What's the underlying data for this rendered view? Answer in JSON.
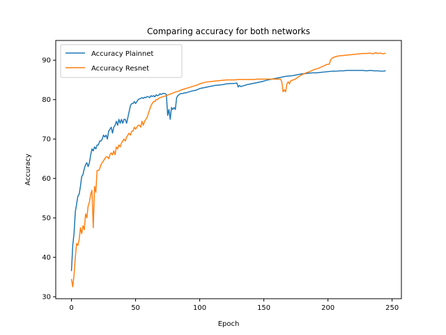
{
  "chart_data": {
    "type": "line",
    "title": "Comparing accuracy for both networks",
    "xlabel": "Epoch",
    "ylabel": "Accuracy",
    "xlim": [
      -12.25,
      257.25
    ],
    "ylim": [
      29.5,
      95.0
    ],
    "xticks": [
      0,
      50,
      100,
      150,
      200,
      250
    ],
    "yticks": [
      30,
      40,
      50,
      60,
      70,
      80,
      90
    ],
    "grid": false,
    "legend_position": "top-left",
    "series": [
      {
        "name": "Accuracy Plainnet",
        "color": "#1f77b4",
        "points": [
          [
            0,
            36.5
          ],
          [
            1,
            43
          ],
          [
            2,
            46
          ],
          [
            3,
            51.5
          ],
          [
            4,
            53.5
          ],
          [
            5,
            55.5
          ],
          [
            6,
            56
          ],
          [
            7,
            58
          ],
          [
            8,
            60.5
          ],
          [
            9,
            61
          ],
          [
            10,
            62.5
          ],
          [
            11,
            63.5
          ],
          [
            12,
            64
          ],
          [
            13,
            63
          ],
          [
            14,
            64
          ],
          [
            15,
            66
          ],
          [
            16,
            67.5
          ],
          [
            17,
            67
          ],
          [
            18,
            68
          ],
          [
            19,
            67.5
          ],
          [
            20,
            68.5
          ],
          [
            21,
            68.5
          ],
          [
            22,
            69.5
          ],
          [
            23,
            69.5
          ],
          [
            24,
            70
          ],
          [
            25,
            71
          ],
          [
            26,
            70.5
          ],
          [
            27,
            71
          ],
          [
            28,
            70
          ],
          [
            29,
            72
          ],
          [
            30,
            72.5
          ],
          [
            31,
            73
          ],
          [
            32,
            71.5
          ],
          [
            33,
            73
          ],
          [
            34,
            73.5
          ],
          [
            35,
            74.5
          ],
          [
            36,
            73.5
          ],
          [
            37,
            75
          ],
          [
            38,
            74
          ],
          [
            39,
            75
          ],
          [
            40,
            74
          ],
          [
            41,
            75
          ],
          [
            42,
            75
          ],
          [
            43,
            74
          ],
          [
            44,
            75.5
          ],
          [
            45,
            77
          ],
          [
            46,
            78.5
          ],
          [
            47,
            79
          ],
          [
            48,
            79
          ],
          [
            49,
            79.5
          ],
          [
            50,
            79
          ],
          [
            51,
            79.5
          ],
          [
            52,
            80
          ],
          [
            53,
            80.2
          ],
          [
            54,
            80.3
          ],
          [
            55,
            80.5
          ],
          [
            56,
            80.3
          ],
          [
            57,
            80.6
          ],
          [
            58,
            80.5
          ],
          [
            59,
            80.8
          ],
          [
            60,
            80.7
          ],
          [
            61,
            80.5
          ],
          [
            62,
            81
          ],
          [
            63,
            80.8
          ],
          [
            64,
            81
          ],
          [
            65,
            80.7
          ],
          [
            66,
            81.2
          ],
          [
            67,
            81
          ],
          [
            68,
            81.1
          ],
          [
            69,
            81.5
          ],
          [
            70,
            81.3
          ],
          [
            71,
            81.5
          ],
          [
            72,
            81.6
          ],
          [
            73,
            81.5
          ],
          [
            74,
            81.3
          ],
          [
            75,
            76
          ],
          [
            76,
            77.5
          ],
          [
            77,
            75
          ],
          [
            78,
            78
          ],
          [
            79,
            77.5
          ],
          [
            80,
            78
          ],
          [
            81,
            77.5
          ],
          [
            82,
            80.5
          ],
          [
            83,
            81
          ],
          [
            84,
            81.3
          ],
          [
            85,
            81.5
          ],
          [
            86,
            81.5
          ],
          [
            87,
            81.6
          ],
          [
            88,
            81.7
          ],
          [
            89,
            81.7
          ],
          [
            90,
            81.8
          ],
          [
            92,
            82
          ],
          [
            94,
            82.2
          ],
          [
            96,
            82.3
          ],
          [
            98,
            82.5
          ],
          [
            100,
            82.8
          ],
          [
            103,
            83
          ],
          [
            106,
            83.2
          ],
          [
            109,
            83.4
          ],
          [
            112,
            83.6
          ],
          [
            115,
            83.7
          ],
          [
            118,
            83.8
          ],
          [
            121,
            84
          ],
          [
            124,
            84.1
          ],
          [
            127,
            84.1
          ],
          [
            129,
            84.2
          ],
          [
            130,
            83.2
          ],
          [
            131,
            83.6
          ],
          [
            132,
            83.3
          ],
          [
            134,
            83.5
          ],
          [
            137,
            83.8
          ],
          [
            140,
            84
          ],
          [
            143,
            84.2
          ],
          [
            146,
            84.4
          ],
          [
            149,
            84.6
          ],
          [
            152,
            84.9
          ],
          [
            155,
            85.1
          ],
          [
            158,
            85.3
          ],
          [
            161,
            85.5
          ],
          [
            164,
            85.7
          ],
          [
            167,
            85.9
          ],
          [
            170,
            86
          ],
          [
            173,
            86.1
          ],
          [
            176,
            86.3
          ],
          [
            179,
            86.5
          ],
          [
            182,
            86.6
          ],
          [
            185,
            86.7
          ],
          [
            188,
            86.8
          ],
          [
            191,
            86.8
          ],
          [
            194,
            86.9
          ],
          [
            197,
            87
          ],
          [
            200,
            87.1
          ],
          [
            203,
            87.2
          ],
          [
            206,
            87.2
          ],
          [
            209,
            87.3
          ],
          [
            212,
            87.3
          ],
          [
            215,
            87.4
          ],
          [
            218,
            87.4
          ],
          [
            221,
            87.4
          ],
          [
            224,
            87.4
          ],
          [
            227,
            87.4
          ],
          [
            230,
            87.3
          ],
          [
            233,
            87.4
          ],
          [
            236,
            87.3
          ],
          [
            239,
            87.3
          ],
          [
            242,
            87.2
          ],
          [
            245,
            87.3
          ]
        ]
      },
      {
        "name": "Accuracy Resnet",
        "color": "#ff7f0e",
        "points": [
          [
            0,
            34.5
          ],
          [
            1,
            32.5
          ],
          [
            2,
            35.5
          ],
          [
            3,
            40
          ],
          [
            4,
            43.5
          ],
          [
            5,
            43
          ],
          [
            6,
            44.5
          ],
          [
            7,
            47.5
          ],
          [
            8,
            46
          ],
          [
            9,
            48
          ],
          [
            10,
            47
          ],
          [
            11,
            51
          ],
          [
            12,
            50
          ],
          [
            13,
            53
          ],
          [
            14,
            54
          ],
          [
            15,
            56
          ],
          [
            16,
            57
          ],
          [
            17,
            47.5
          ],
          [
            18,
            58
          ],
          [
            19,
            56.5
          ],
          [
            20,
            62
          ],
          [
            21,
            62
          ],
          [
            22,
            62.5
          ],
          [
            23,
            63.5
          ],
          [
            24,
            64
          ],
          [
            25,
            64.5
          ],
          [
            26,
            65
          ],
          [
            27,
            65.5
          ],
          [
            28,
            65.5
          ],
          [
            29,
            65
          ],
          [
            30,
            66
          ],
          [
            31,
            66.5
          ],
          [
            32,
            66
          ],
          [
            33,
            67
          ],
          [
            34,
            66
          ],
          [
            35,
            68
          ],
          [
            36,
            67.5
          ],
          [
            37,
            68.5
          ],
          [
            38,
            68
          ],
          [
            39,
            69
          ],
          [
            40,
            69.5
          ],
          [
            41,
            70
          ],
          [
            42,
            69.5
          ],
          [
            43,
            70.5
          ],
          [
            44,
            71
          ],
          [
            45,
            71.5
          ],
          [
            46,
            71
          ],
          [
            47,
            72
          ],
          [
            48,
            72
          ],
          [
            49,
            73
          ],
          [
            50,
            72.5
          ],
          [
            51,
            73
          ],
          [
            52,
            73.5
          ],
          [
            53,
            73.5
          ],
          [
            54,
            73
          ],
          [
            55,
            74.5
          ],
          [
            56,
            73.5
          ],
          [
            57,
            74.5
          ],
          [
            58,
            75
          ],
          [
            59,
            75.5
          ],
          [
            60,
            76.5
          ],
          [
            61,
            77.5
          ],
          [
            62,
            78.5
          ],
          [
            63,
            79
          ],
          [
            64,
            79.5
          ],
          [
            65,
            79.5
          ],
          [
            66,
            80
          ],
          [
            67,
            80
          ],
          [
            68,
            80.3
          ],
          [
            69,
            80.5
          ],
          [
            70,
            80.6
          ],
          [
            72,
            80.8
          ],
          [
            74,
            81
          ],
          [
            76,
            81.3
          ],
          [
            78,
            81.5
          ],
          [
            80,
            81.8
          ],
          [
            82,
            82
          ],
          [
            84,
            82.2
          ],
          [
            86,
            82.5
          ],
          [
            88,
            82.7
          ],
          [
            90,
            82.9
          ],
          [
            92,
            83.1
          ],
          [
            94,
            83.3
          ],
          [
            96,
            83.5
          ],
          [
            98,
            83.7
          ],
          [
            100,
            84
          ],
          [
            103,
            84.3
          ],
          [
            106,
            84.5
          ],
          [
            109,
            84.6
          ],
          [
            112,
            84.7
          ],
          [
            115,
            84.8
          ],
          [
            118,
            84.9
          ],
          [
            121,
            85
          ],
          [
            124,
            85
          ],
          [
            127,
            85
          ],
          [
            130,
            85.1
          ],
          [
            133,
            85.1
          ],
          [
            136,
            85.1
          ],
          [
            139,
            85.1
          ],
          [
            142,
            85.1
          ],
          [
            145,
            85.2
          ],
          [
            148,
            85.2
          ],
          [
            151,
            85.2
          ],
          [
            154,
            85.2
          ],
          [
            157,
            85.2
          ],
          [
            160,
            85.2
          ],
          [
            163,
            85.2
          ],
          [
            164,
            84.5
          ],
          [
            165,
            82
          ],
          [
            166,
            82.5
          ],
          [
            167,
            82
          ],
          [
            168,
            84
          ],
          [
            169,
            84.5
          ],
          [
            170,
            84
          ],
          [
            171,
            84.8
          ],
          [
            173,
            85
          ],
          [
            175,
            85.3
          ],
          [
            177,
            85.8
          ],
          [
            179,
            86.2
          ],
          [
            181,
            86.5
          ],
          [
            183,
            86.8
          ],
          [
            185,
            87
          ],
          [
            187,
            87.3
          ],
          [
            189,
            87.6
          ],
          [
            191,
            87.8
          ],
          [
            193,
            88
          ],
          [
            195,
            88.3
          ],
          [
            197,
            88.6
          ],
          [
            199,
            88.9
          ],
          [
            201,
            89
          ],
          [
            202,
            90
          ],
          [
            203,
            90.5
          ],
          [
            205,
            90.8
          ],
          [
            207,
            91
          ],
          [
            209,
            91.1
          ],
          [
            212,
            91.2
          ],
          [
            215,
            91.3
          ],
          [
            218,
            91.4
          ],
          [
            221,
            91.5
          ],
          [
            224,
            91.6
          ],
          [
            227,
            91.7
          ],
          [
            230,
            91.7
          ],
          [
            233,
            91.8
          ],
          [
            235,
            91.6
          ],
          [
            237,
            91.9
          ],
          [
            239,
            91.7
          ],
          [
            241,
            91.8
          ],
          [
            243,
            91.6
          ],
          [
            245,
            91.8
          ]
        ]
      }
    ]
  }
}
